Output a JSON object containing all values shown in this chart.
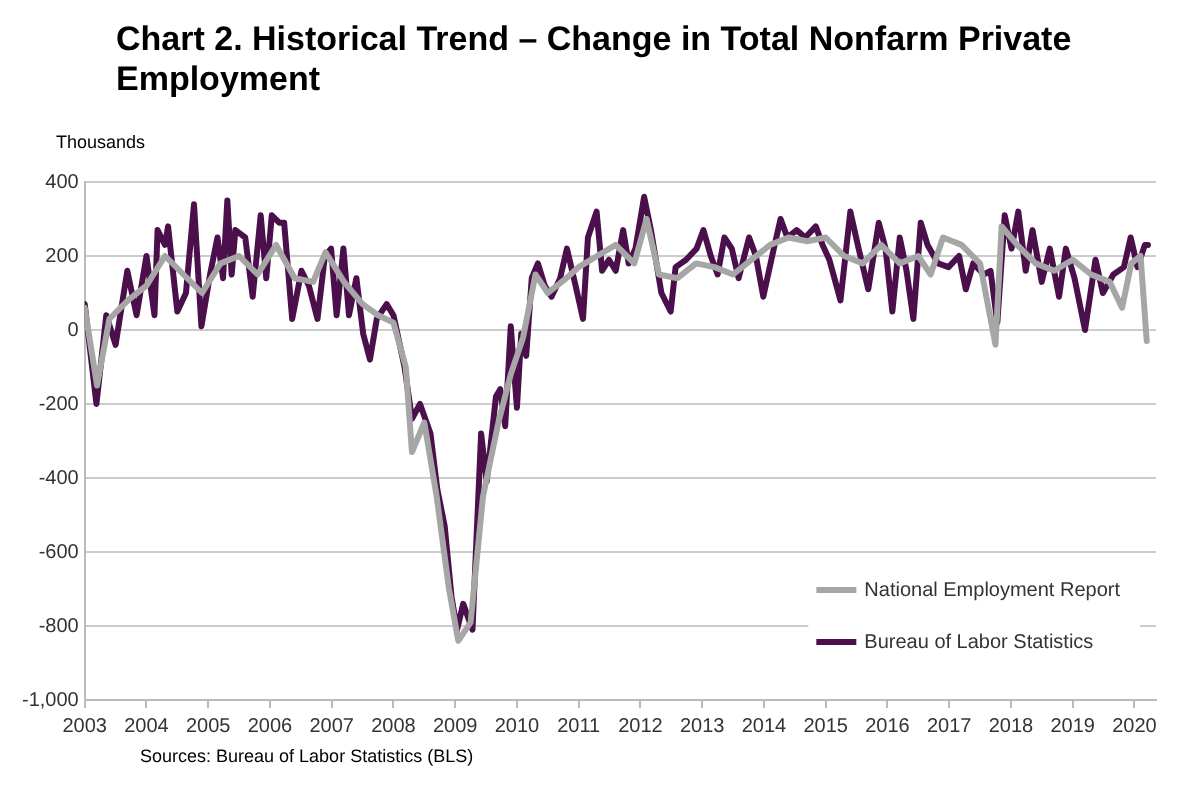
{
  "chart_data": {
    "type": "line",
    "title": "Chart 2. Historical Trend – Change in Total Nonfarm Private Employment",
    "ylabel": "Thousands",
    "annotations": [
      "Sources: Bureau of Labor Statistics (BLS)"
    ],
    "xlim": [
      2003,
      2020.35
    ],
    "xticks": [
      2003,
      2004,
      2005,
      2006,
      2007,
      2008,
      2009,
      2010,
      2011,
      2012,
      2013,
      2014,
      2015,
      2016,
      2017,
      2018,
      2019,
      2020
    ],
    "ylim": [
      -1000,
      400
    ],
    "yticks": [
      {
        "value": -1000,
        "label": "-1,000"
      },
      -800,
      -600,
      -400,
      -200,
      0,
      200,
      400
    ],
    "grid": "y",
    "legend": "bottom right",
    "marker": "none",
    "line_style": "solid",
    "series": [
      {
        "name": "National Employment Report",
        "color": "#a6a6a6",
        "x": [
          2003.0,
          2003.2,
          2003.4,
          2003.7,
          2004.0,
          2004.3,
          2004.6,
          2004.9,
          2005.2,
          2005.5,
          2005.8,
          2006.1,
          2006.4,
          2006.7,
          2006.9,
          2007.2,
          2007.5,
          2007.75,
          2008.0,
          2008.2,
          2008.3,
          2008.5,
          2008.7,
          2008.9,
          2009.05,
          2009.25,
          2009.45,
          2009.7,
          2009.9,
          2010.1,
          2010.3,
          2010.5,
          2010.8,
          2011.0,
          2011.3,
          2011.6,
          2011.9,
          2012.1,
          2012.3,
          2012.6,
          2012.9,
          2013.2,
          2013.5,
          2013.8,
          2014.1,
          2014.4,
          2014.7,
          2015.0,
          2015.3,
          2015.6,
          2015.9,
          2016.2,
          2016.5,
          2016.7,
          2016.9,
          2017.2,
          2017.5,
          2017.75,
          2017.85,
          2018.1,
          2018.4,
          2018.7,
          2019.0,
          2019.3,
          2019.6,
          2019.8,
          2019.95,
          2020.1,
          2020.2
        ],
        "values": [
          60,
          -150,
          30,
          80,
          120,
          200,
          150,
          100,
          180,
          200,
          150,
          230,
          140,
          130,
          210,
          130,
          70,
          40,
          20,
          -100,
          -330,
          -250,
          -450,
          -700,
          -840,
          -790,
          -450,
          -250,
          -120,
          -20,
          150,
          100,
          140,
          170,
          200,
          230,
          180,
          300,
          150,
          140,
          180,
          170,
          150,
          190,
          230,
          250,
          240,
          250,
          200,
          180,
          230,
          180,
          200,
          150,
          250,
          230,
          180,
          -40,
          280,
          230,
          180,
          160,
          190,
          150,
          130,
          60,
          180,
          200,
          -30
        ]
      },
      {
        "name": "Bureau of Labor Statistics",
        "color": "#4b0f4b",
        "x": [
          2003.0,
          2003.19,
          2003.35,
          2003.5,
          2003.69,
          2003.84,
          2004.0,
          2004.13,
          2004.18,
          2004.3,
          2004.35,
          2004.5,
          2004.64,
          2004.77,
          2004.89,
          2005.03,
          2005.15,
          2005.24,
          2005.31,
          2005.38,
          2005.44,
          2005.6,
          2005.72,
          2005.85,
          2005.94,
          2006.03,
          2006.15,
          2006.23,
          2006.36,
          2006.51,
          2006.63,
          2006.77,
          2006.89,
          2006.99,
          2007.08,
          2007.19,
          2007.28,
          2007.4,
          2007.51,
          2007.62,
          2007.73,
          2007.89,
          2008.0,
          2008.18,
          2008.3,
          2008.43,
          2008.6,
          2008.71,
          2008.83,
          2008.94,
          2009.03,
          2009.13,
          2009.28,
          2009.42,
          2009.51,
          2009.66,
          2009.73,
          2009.81,
          2009.9,
          2010.0,
          2010.07,
          2010.15,
          2010.24,
          2010.34,
          2010.45,
          2010.56,
          2010.7,
          2010.81,
          2010.95,
          2011.07,
          2011.15,
          2011.29,
          2011.38,
          2011.49,
          2011.6,
          2011.72,
          2011.81,
          2011.92,
          2012.06,
          2012.17,
          2012.34,
          2012.49,
          2012.57,
          2012.74,
          2012.91,
          2013.02,
          2013.14,
          2013.25,
          2013.36,
          2013.48,
          2013.59,
          2013.76,
          2013.87,
          2013.99,
          2014.16,
          2014.27,
          2014.38,
          2014.53,
          2014.67,
          2014.84,
          2014.95,
          2015.06,
          2015.24,
          2015.4,
          2015.52,
          2015.69,
          2015.86,
          2015.97,
          2016.08,
          2016.2,
          2016.31,
          2016.42,
          2016.54,
          2016.65,
          2016.82,
          2016.99,
          2017.16,
          2017.27,
          2017.39,
          2017.56,
          2017.67,
          2017.78,
          2017.9,
          2018.01,
          2018.12,
          2018.24,
          2018.35,
          2018.5,
          2018.63,
          2018.78,
          2018.89,
          2019.03,
          2019.2,
          2019.37,
          2019.49,
          2019.66,
          2019.83,
          2019.94,
          2020.05,
          2020.17,
          2020.22
        ],
        "values": [
          70,
          -200,
          40,
          -40,
          160,
          40,
          200,
          40,
          270,
          230,
          280,
          50,
          100,
          340,
          10,
          150,
          250,
          140,
          350,
          150,
          270,
          250,
          90,
          310,
          140,
          310,
          290,
          290,
          30,
          160,
          120,
          30,
          200,
          220,
          40,
          220,
          40,
          140,
          -10,
          -80,
          30,
          70,
          40,
          -100,
          -240,
          -200,
          -280,
          -430,
          -530,
          -720,
          -810,
          -740,
          -810,
          -280,
          -410,
          -180,
          -160,
          -260,
          10,
          -210,
          -10,
          -70,
          140,
          180,
          120,
          90,
          140,
          220,
          120,
          30,
          250,
          320,
          160,
          190,
          160,
          270,
          180,
          220,
          360,
          270,
          100,
          50,
          170,
          190,
          220,
          270,
          200,
          150,
          250,
          220,
          140,
          250,
          200,
          90,
          220,
          300,
          250,
          270,
          250,
          280,
          230,
          190,
          80,
          320,
          230,
          110,
          290,
          220,
          50,
          250,
          160,
          30,
          290,
          230,
          180,
          170,
          200,
          110,
          180,
          150,
          160,
          20,
          310,
          220,
          320,
          160,
          270,
          130,
          220,
          90,
          220,
          140,
          0,
          190,
          100,
          150,
          170,
          250,
          170,
          230,
          230
        ]
      }
    ]
  }
}
